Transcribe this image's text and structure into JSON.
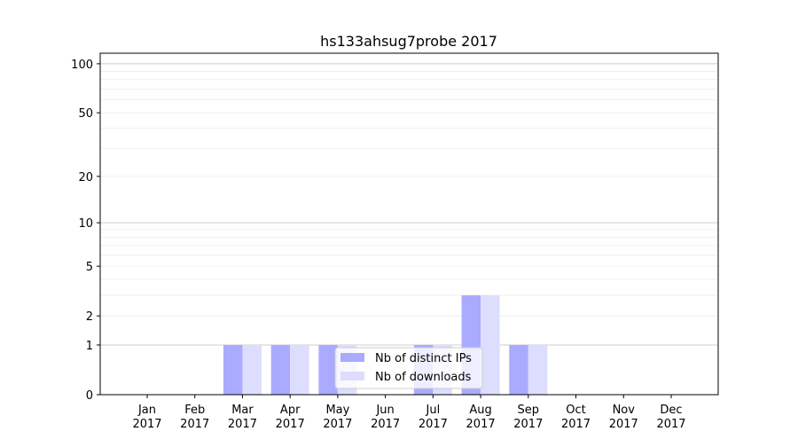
{
  "chart_data": {
    "type": "bar",
    "title": "hs133ahsug7probe 2017",
    "xlabel": "",
    "ylabel": "",
    "yscale": "log(y+1)",
    "ylim": [
      0,
      116
    ],
    "yticks": [
      0,
      1,
      2,
      5,
      10,
      20,
      50,
      100
    ],
    "grid": true,
    "legend_position": "lower-center",
    "categories": [
      "Jan\n2017",
      "Feb\n2017",
      "Mar\n2017",
      "Apr\n2017",
      "May\n2017",
      "Jun\n2017",
      "Jul\n2017",
      "Aug\n2017",
      "Sep\n2017",
      "Oct\n2017",
      "Nov\n2017",
      "Dec\n2017"
    ],
    "series": [
      {
        "name": "Nb of distinct IPs",
        "color": "#aaaaff",
        "values": [
          0,
          0,
          1,
          1,
          1,
          0,
          1,
          3,
          1,
          0,
          0,
          0
        ]
      },
      {
        "name": "Nb of downloads",
        "color": "#ddddff",
        "values": [
          0,
          0,
          1,
          1,
          1,
          0,
          1,
          3,
          1,
          0,
          0,
          0
        ]
      }
    ]
  }
}
